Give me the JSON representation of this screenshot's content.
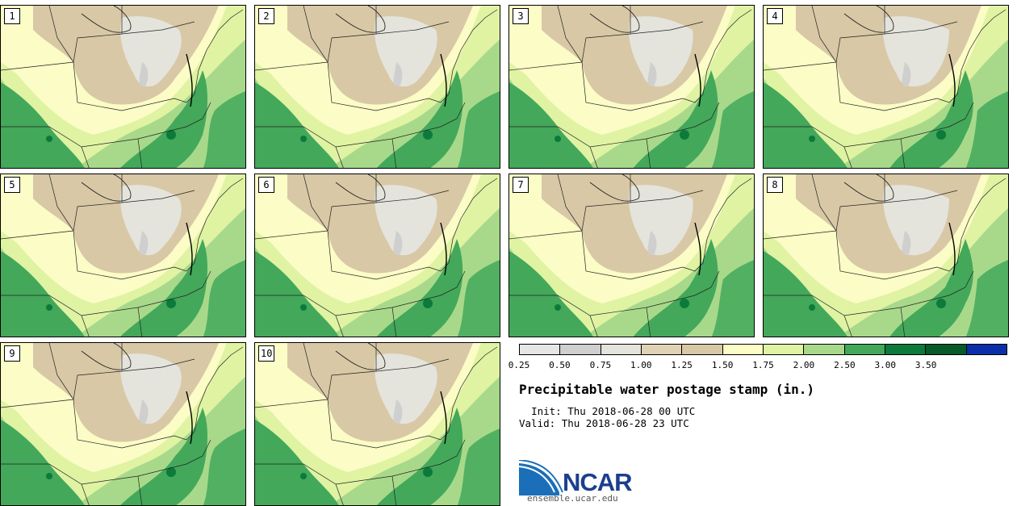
{
  "figure": {
    "title": "Precipitable water postage stamp (in.)",
    "init": "Thu 2018-06-28 00 UTC",
    "valid": "Thu 2018-06-28 23 UTC",
    "init_label": "Init:",
    "valid_label": "Valid:"
  },
  "members": [
    "1",
    "2",
    "3",
    "4",
    "5",
    "6",
    "7",
    "8",
    "9",
    "10"
  ],
  "colorbar": {
    "ticks": [
      "0.25",
      "0.50",
      "0.75",
      "1.00",
      "1.25",
      "1.50",
      "1.75",
      "2.00",
      "2.50",
      "3.00",
      "3.50"
    ],
    "colors": [
      "#e6e6e6",
      "#cfcfcf",
      "#e4e4dc",
      "#e0d3b5",
      "#d8c8a6",
      "#fbfcc6",
      "#dff3a3",
      "#a8d98a",
      "#43a85a",
      "#0b7a3a",
      "#075a2a",
      "#0a2fa8"
    ]
  },
  "logo": {
    "name": "NCAR",
    "url": "ensemble.ucar.edu"
  }
}
